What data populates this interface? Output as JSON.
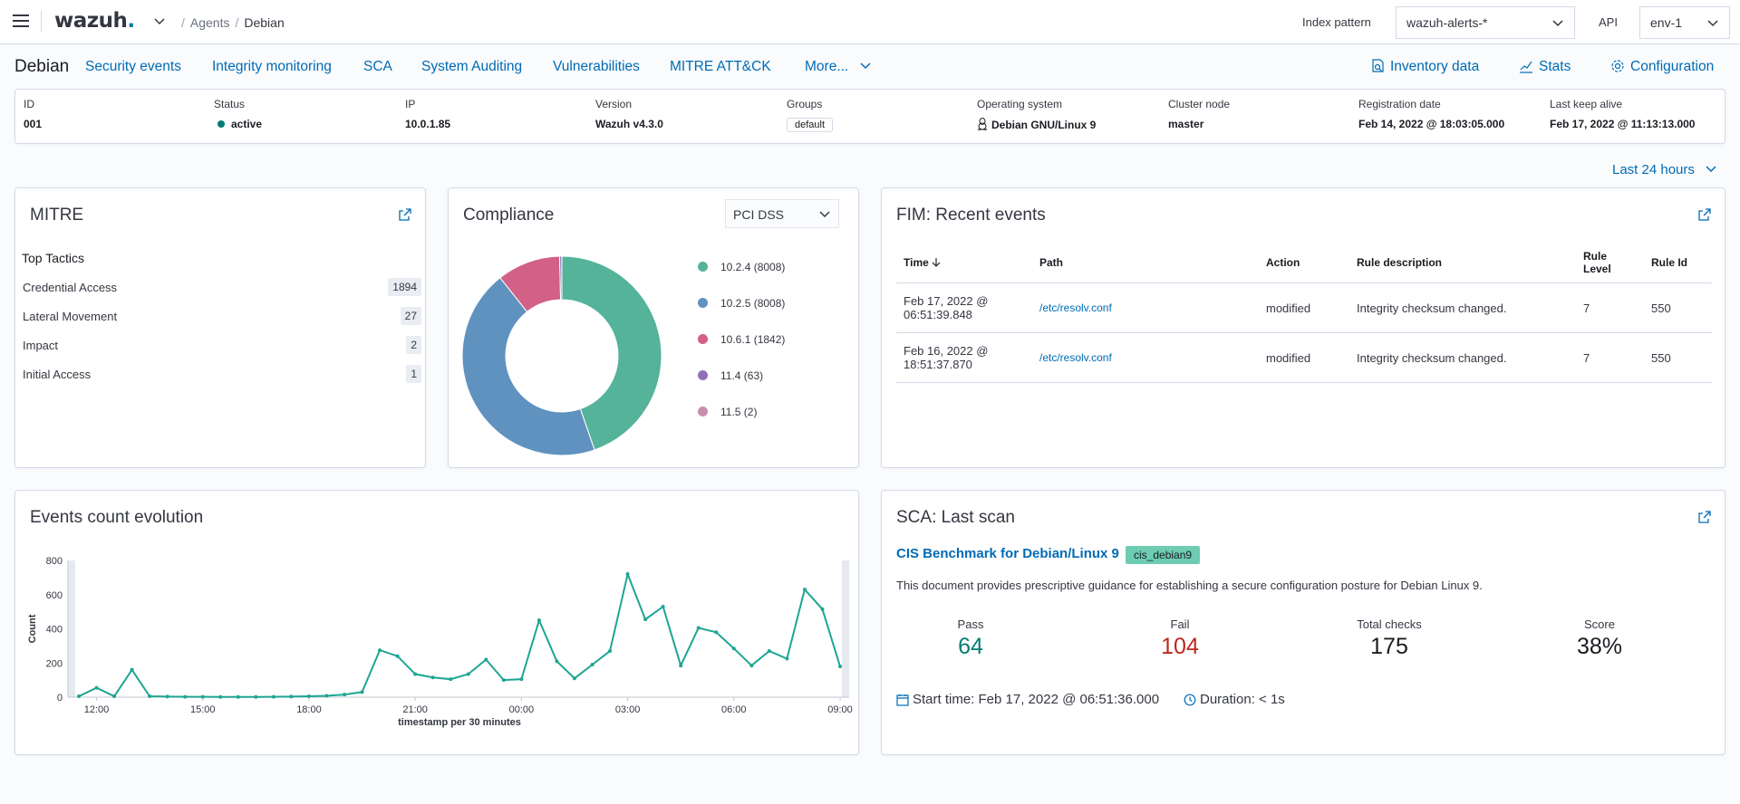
{
  "header": {
    "logo": "wazuh",
    "logo_dot": ".",
    "breadcrumb_agents": "Agents",
    "breadcrumb_sep": "/",
    "breadcrumb_current": "Debian",
    "index_pattern_label": "Index pattern",
    "index_pattern_value": "wazuh-alerts-*",
    "api_label": "API",
    "api_value": "env-1"
  },
  "agent_nav": {
    "agent_name": "Debian",
    "tabs": [
      "Security events",
      "Integrity monitoring",
      "SCA",
      "System Auditing",
      "Vulnerabilities",
      "MITRE ATT&CK",
      "More..."
    ],
    "right_links": [
      "Inventory data",
      "Stats",
      "Configuration"
    ]
  },
  "agent_info": {
    "id_label": "ID",
    "id": "001",
    "status_label": "Status",
    "status": "active",
    "ip_label": "IP",
    "ip": "10.0.1.85",
    "version_label": "Version",
    "version": "Wazuh v4.3.0",
    "groups_label": "Groups",
    "group": "default",
    "os_label": "Operating system",
    "os": "Debian GNU/Linux 9",
    "cluster_label": "Cluster node",
    "cluster": "master",
    "reg_label": "Registration date",
    "reg": "Feb 14, 2022 @ 18:03:05.000",
    "keepalive_label": "Last keep alive",
    "keepalive": "Feb 17, 2022 @ 11:13:13.000"
  },
  "timepicker": "Last 24 hours",
  "mitre": {
    "title": "MITRE",
    "subtitle": "Top Tactics",
    "tactics": [
      {
        "name": "Credential Access",
        "count": "1894"
      },
      {
        "name": "Lateral Movement",
        "count": "27"
      },
      {
        "name": "Impact",
        "count": "2"
      },
      {
        "name": "Initial Access",
        "count": "1"
      }
    ]
  },
  "compliance": {
    "title": "Compliance",
    "selected": "PCI DSS",
    "legend": [
      "10.2.4 (8008)",
      "10.2.5 (8008)",
      "10.6.1 (1842)",
      "11.4 (63)",
      "11.5 (2)"
    ],
    "colors": [
      "#54b399",
      "#6092c0",
      "#d36086",
      "#9170b8",
      "#ca8eae"
    ],
    "values": [
      8008,
      8008,
      1842,
      63,
      2
    ]
  },
  "fim": {
    "title": "FIM: Recent events",
    "columns": [
      "Time",
      "Path",
      "Action",
      "Rule description",
      "Rule Level",
      "Rule Id"
    ],
    "rows": [
      {
        "time1": "Feb 17, 2022 @",
        "time2": "06:51:39.848",
        "path": "/etc/resolv.conf",
        "action": "modified",
        "desc": "Integrity checksum changed.",
        "level": "7",
        "id": "550"
      },
      {
        "time1": "Feb 16, 2022 @",
        "time2": "18:51:37.870",
        "path": "/etc/resolv.conf",
        "action": "modified",
        "desc": "Integrity checksum changed.",
        "level": "7",
        "id": "550"
      }
    ]
  },
  "events_chart": {
    "title": "Events count evolution",
    "chart_data": {
      "type": "line",
      "xlabel": "timestamp per 30 minutes",
      "ylabel": "Count",
      "ylim": [
        0,
        800
      ],
      "yticks": [
        "0",
        "200",
        "400",
        "600",
        "800"
      ],
      "xticks": [
        "12:00",
        "15:00",
        "18:00",
        "21:00",
        "00:00",
        "03:00",
        "06:00",
        "09:00"
      ],
      "color": "#1ea593",
      "values": [
        5,
        55,
        5,
        160,
        5,
        3,
        2,
        2,
        1,
        1,
        1,
        2,
        3,
        5,
        8,
        15,
        30,
        275,
        240,
        135,
        115,
        105,
        135,
        220,
        100,
        105,
        450,
        210,
        110,
        190,
        270,
        720,
        455,
        530,
        185,
        405,
        380,
        285,
        185,
        270,
        225,
        630,
        515,
        180
      ]
    }
  },
  "sca": {
    "title": "SCA: Last scan",
    "benchmark": "CIS Benchmark for Debian/Linux 9",
    "policy_id": "cis_debian9",
    "description": "This document provides prescriptive guidance for establishing a secure configuration posture for Debian Linux 9.",
    "pass_label": "Pass",
    "pass": "64",
    "fail_label": "Fail",
    "fail": "104",
    "total_label": "Total checks",
    "total": "175",
    "score_label": "Score",
    "score": "38%",
    "start_time": "Start time: Feb 17, 2022 @ 06:51:36.000",
    "duration": "Duration: < 1s",
    "colors": {
      "pass": "#017d73",
      "fail": "#bd271e"
    }
  }
}
